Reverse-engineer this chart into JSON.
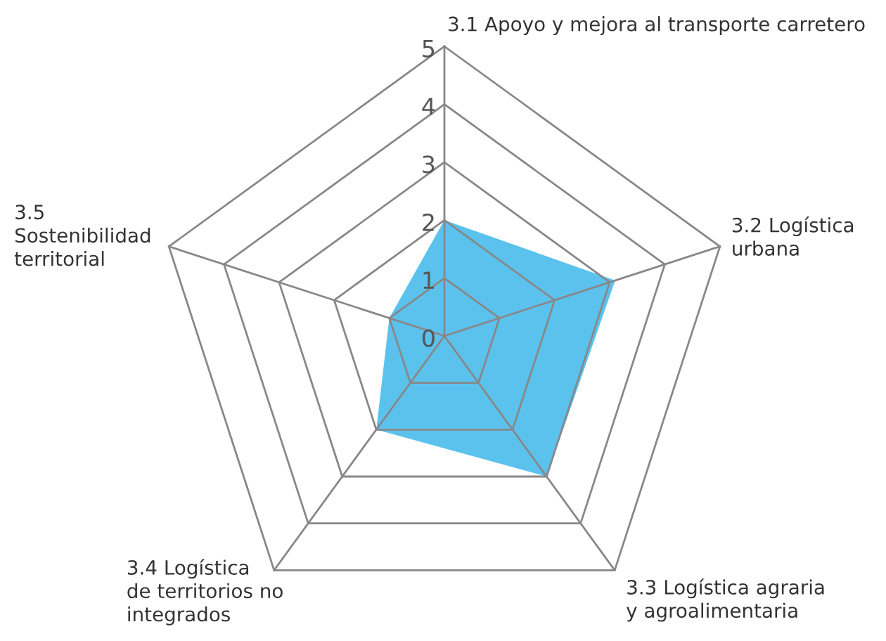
{
  "chart_data": {
    "type": "radar",
    "categories": [
      "3.1 Apoyo y mejora al transporte carretero",
      "3.2 Logística\nurbana",
      "3.3 Logística agraria\ny agroalimentaria",
      "3.4 Logística\nde territorios no\nintegrados",
      "3.5\nSostenibilidad\nterritorial"
    ],
    "series": [
      {
        "color": "#5bc2ee",
        "values": [
          2,
          3.1,
          3,
          2,
          1
        ]
      }
    ],
    "ylim": [
      0,
      5
    ],
    "yticks": [
      0,
      1,
      2,
      3,
      4,
      5
    ],
    "grid": true
  }
}
